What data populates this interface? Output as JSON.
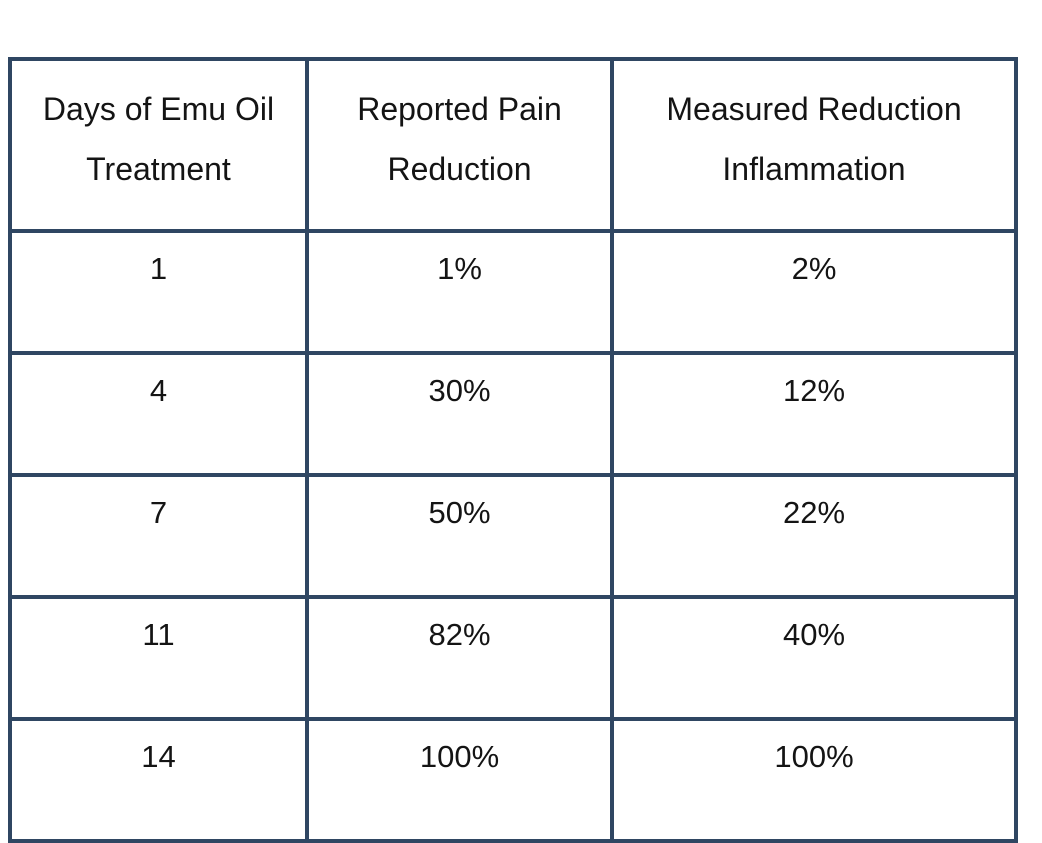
{
  "page": {
    "background": "#ffffff"
  },
  "table": {
    "title_semantic": "emu-oil-treatment-results-table",
    "border_color": "#2F4662",
    "text_color": "#141414",
    "headers": [
      {
        "line1": "Days of Emu Oil",
        "line2": "Treatment"
      },
      {
        "line1": "Reported Pain",
        "line2": "Reduction"
      },
      {
        "line1": "Measured Reduction",
        "line2": "Inflammation"
      }
    ],
    "rows": [
      [
        "1",
        "1%",
        "2%"
      ],
      [
        "4",
        "30%",
        "12%"
      ],
      [
        "7",
        "50%",
        "22%"
      ],
      [
        "11",
        "82%",
        "40%"
      ],
      [
        "14",
        "100%",
        "100%"
      ]
    ]
  },
  "chart_data": {
    "type": "table",
    "columns": [
      "Days of Emu Oil Treatment",
      "Reported Pain Reduction",
      "Measured Reduction Inflammation"
    ],
    "rows": [
      [
        1,
        "1%",
        "2%"
      ],
      [
        4,
        "30%",
        "12%"
      ],
      [
        7,
        "50%",
        "22%"
      ],
      [
        11,
        "82%",
        "40%"
      ],
      [
        14,
        "100%",
        "100%"
      ]
    ],
    "x": [
      1,
      4,
      7,
      11,
      14
    ],
    "xlabel": "Days of Emu Oil Treatment",
    "series": [
      {
        "name": "Reported Pain Reduction",
        "values": [
          1,
          30,
          50,
          82,
          100
        ],
        "unit": "%"
      },
      {
        "name": "Measured Reduction Inflammation",
        "values": [
          2,
          12,
          22,
          40,
          100
        ],
        "unit": "%"
      }
    ]
  }
}
